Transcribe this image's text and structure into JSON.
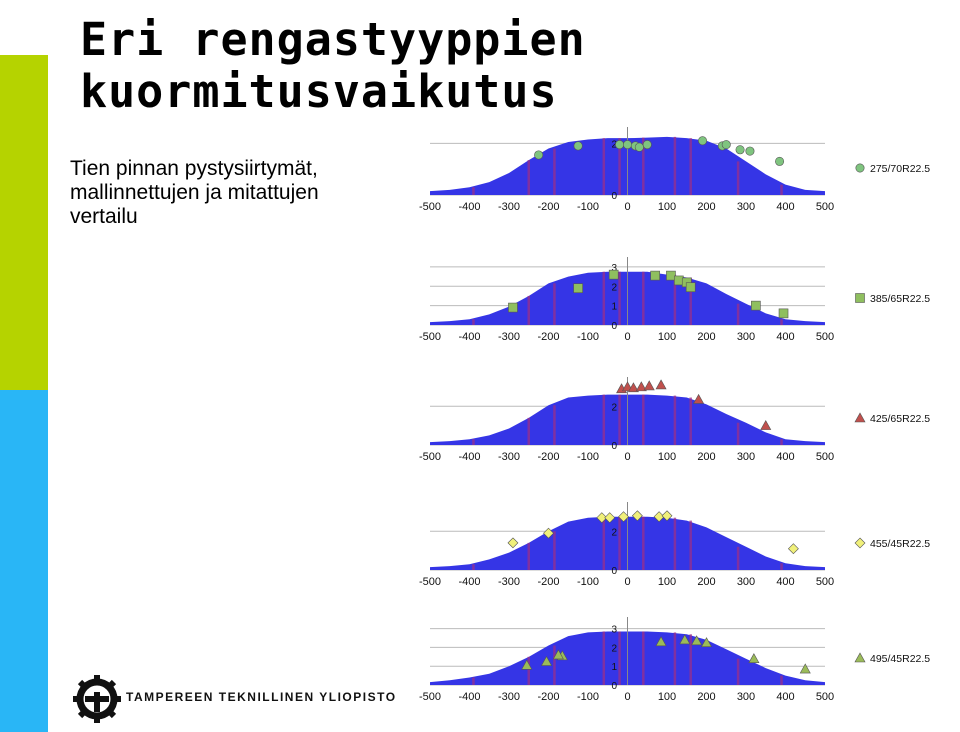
{
  "slide": {
    "title_line1": "Eri rengastyyppien",
    "title_line2": "kuormitusvaikutus",
    "subtitle": "Tien pinnan pystysiirtymät, mallinnettujen ja mitattujen vertailu",
    "university": "TAMPEREEN TEKNILLINEN YLIOPISTO"
  },
  "colors": {
    "fill": "#3535e6",
    "band": "#9a2f8a",
    "green_bar": "#b5d300",
    "blue_bar": "#29b6f6"
  },
  "chart_data": [
    {
      "type": "area",
      "x": [
        -500,
        -450,
        -400,
        -350,
        -300,
        -250,
        -200,
        -150,
        -100,
        -50,
        0,
        50,
        100,
        150,
        200,
        250,
        300,
        350,
        400,
        450,
        500
      ],
      "y": [
        0.15,
        0.2,
        0.3,
        0.5,
        0.85,
        1.35,
        1.8,
        2.05,
        2.15,
        2.2,
        2.2,
        2.22,
        2.25,
        2.2,
        2.1,
        1.8,
        1.3,
        0.8,
        0.4,
        0.2,
        0.15
      ],
      "xticks": [
        "-500",
        "-400",
        "-300",
        "-200",
        "-100",
        "0",
        "100",
        "200",
        "300",
        "400",
        "500"
      ],
      "yticks": [
        "2",
        "0"
      ],
      "xlim": [
        -500,
        500
      ],
      "ylim": [
        0,
        2.4
      ],
      "series": [
        {
          "name": "275/70R22.5",
          "marker": "circle",
          "color": "#7fc47f",
          "points": [
            [
              -225,
              1.55
            ],
            [
              -125,
              1.9
            ],
            [
              -20,
              1.95
            ],
            [
              0,
              1.95
            ],
            [
              20,
              1.9
            ],
            [
              50,
              1.95
            ],
            [
              30,
              1.85
            ],
            [
              190,
              2.1
            ],
            [
              240,
              1.9
            ],
            [
              250,
              1.95
            ],
            [
              285,
              1.75
            ],
            [
              310,
              1.7
            ],
            [
              385,
              1.3
            ]
          ]
        }
      ]
    },
    {
      "type": "area",
      "x": [
        -500,
        -450,
        -400,
        -350,
        -300,
        -250,
        -200,
        -150,
        -100,
        -50,
        0,
        50,
        100,
        150,
        200,
        250,
        300,
        350,
        400,
        450,
        500
      ],
      "y": [
        0.15,
        0.2,
        0.3,
        0.55,
        0.95,
        1.5,
        2.15,
        2.5,
        2.7,
        2.75,
        2.75,
        2.75,
        2.6,
        2.45,
        2.15,
        1.6,
        1.1,
        0.6,
        0.3,
        0.2,
        0.15
      ],
      "xticks": [
        "-500",
        "-400",
        "-300",
        "-200",
        "-100",
        "0",
        "100",
        "200",
        "300",
        "400",
        "500"
      ],
      "yticks": [
        "3",
        "2",
        "1",
        "0"
      ],
      "xlim": [
        -500,
        500
      ],
      "ylim": [
        0,
        3.2
      ],
      "series": [
        {
          "name": "385/65R22.5",
          "marker": "square",
          "color": "#8fbf5f",
          "points": [
            [
              -290,
              0.9
            ],
            [
              -125,
              1.9
            ],
            [
              -35,
              2.6
            ],
            [
              70,
              2.55
            ],
            [
              110,
              2.55
            ],
            [
              130,
              2.3
            ],
            [
              150,
              2.2
            ],
            [
              160,
              1.95
            ],
            [
              325,
              1.0
            ],
            [
              395,
              0.6
            ]
          ]
        }
      ]
    },
    {
      "type": "area",
      "x": [
        -500,
        -450,
        -400,
        -350,
        -300,
        -250,
        -200,
        -150,
        -100,
        -50,
        0,
        50,
        100,
        150,
        200,
        250,
        300,
        350,
        400,
        450,
        500
      ],
      "y": [
        0.15,
        0.2,
        0.3,
        0.5,
        0.85,
        1.4,
        2.05,
        2.45,
        2.55,
        2.6,
        2.6,
        2.6,
        2.55,
        2.45,
        2.1,
        1.6,
        1.15,
        0.65,
        0.3,
        0.2,
        0.15
      ],
      "xticks": [
        "-500",
        "-400",
        "-300",
        "-200",
        "-100",
        "0",
        "100",
        "200",
        "300",
        "400",
        "500"
      ],
      "yticks": [
        "2",
        "0"
      ],
      "xlim": [
        -500,
        500
      ],
      "ylim": [
        0,
        3.2
      ],
      "series": [
        {
          "name": "425/65R22.5",
          "marker": "triangle",
          "color": "#c0504d",
          "points": [
            [
              -15,
              2.9
            ],
            [
              0,
              3.0
            ],
            [
              15,
              2.95
            ],
            [
              35,
              3.0
            ],
            [
              55,
              3.05
            ],
            [
              85,
              3.1
            ],
            [
              180,
              2.35
            ],
            [
              350,
              1.0
            ]
          ]
        }
      ]
    },
    {
      "type": "area",
      "x": [
        -500,
        -450,
        -400,
        -350,
        -300,
        -250,
        -200,
        -150,
        -100,
        -50,
        0,
        50,
        100,
        150,
        200,
        250,
        300,
        350,
        400,
        450,
        500
      ],
      "y": [
        0.15,
        0.2,
        0.3,
        0.55,
        0.9,
        1.4,
        2.0,
        2.5,
        2.7,
        2.75,
        2.75,
        2.75,
        2.7,
        2.55,
        2.2,
        1.7,
        1.2,
        0.7,
        0.35,
        0.2,
        0.15
      ],
      "xticks": [
        "-500",
        "-400",
        "-300",
        "-200",
        "-100",
        "0",
        "100",
        "200",
        "300",
        "400",
        "500"
      ],
      "yticks": [
        "2",
        "0"
      ],
      "xlim": [
        -500,
        500
      ],
      "ylim": [
        0,
        3.2
      ],
      "series": [
        {
          "name": "455/45R22.5",
          "marker": "diamond",
          "color": "#f0f07a",
          "points": [
            [
              -290,
              1.4
            ],
            [
              -200,
              1.9
            ],
            [
              -65,
              2.7
            ],
            [
              -45,
              2.7
            ],
            [
              -10,
              2.75
            ],
            [
              25,
              2.8
            ],
            [
              80,
              2.75
            ],
            [
              100,
              2.8
            ],
            [
              420,
              1.1
            ]
          ]
        }
      ]
    },
    {
      "type": "area",
      "x": [
        -500,
        -450,
        -400,
        -350,
        -300,
        -250,
        -200,
        -150,
        -100,
        -50,
        0,
        50,
        100,
        150,
        200,
        250,
        300,
        350,
        400,
        450,
        500
      ],
      "y": [
        0.15,
        0.25,
        0.4,
        0.6,
        1.0,
        1.5,
        2.1,
        2.6,
        2.8,
        2.85,
        2.85,
        2.85,
        2.8,
        2.7,
        2.4,
        1.9,
        1.4,
        0.9,
        0.5,
        0.25,
        0.15
      ],
      "xticks": [
        "-500",
        "-400",
        "-300",
        "-200",
        "-100",
        "0",
        "100",
        "200",
        "300",
        "400",
        "500"
      ],
      "yticks": [
        "3",
        "2",
        "1",
        "0"
      ],
      "xlim": [
        -500,
        500
      ],
      "ylim": [
        0,
        3.3
      ],
      "series": [
        {
          "name": "495/45R22.5",
          "marker": "triangle",
          "color": "#9bbb59",
          "points": [
            [
              -255,
              1.05
            ],
            [
              -205,
              1.25
            ],
            [
              -165,
              1.55
            ],
            [
              -175,
              1.6
            ],
            [
              85,
              2.3
            ],
            [
              145,
              2.4
            ],
            [
              175,
              2.35
            ],
            [
              200,
              2.25
            ],
            [
              320,
              1.4
            ],
            [
              450,
              0.85
            ]
          ]
        }
      ]
    }
  ]
}
